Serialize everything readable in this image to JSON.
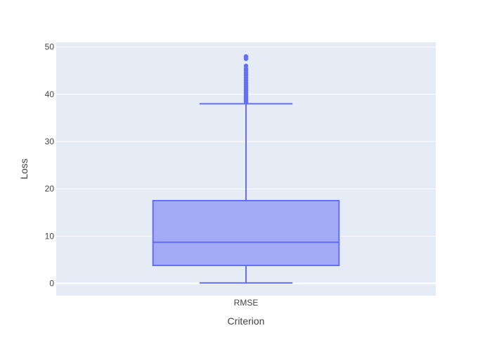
{
  "chart_data": {
    "type": "box",
    "xlabel": "Criterion",
    "ylabel": "Loss",
    "ylim": [
      -2.6,
      51
    ],
    "y_ticks": [
      0,
      10,
      20,
      30,
      40,
      50
    ],
    "grid": true,
    "categories": [
      "RMSE"
    ],
    "series": [
      {
        "category": "RMSE",
        "min": 0.1,
        "q1": 3.8,
        "median": 8.7,
        "q3": 17.5,
        "upper_fence": 38.0,
        "outliers": [
          38.3,
          38.6,
          38.9,
          39.2,
          39.6,
          40.0,
          40.4,
          40.8,
          41.2,
          41.6,
          42.0,
          42.5,
          43.0,
          43.5,
          44.0,
          44.5,
          45.0,
          45.4,
          46.0,
          47.5,
          47.8,
          48.0
        ]
      }
    ],
    "colors": {
      "box_line": "#636efa",
      "box_fill": "#a3abf7",
      "plot_bg": "#e5ecf6",
      "grid": "#ffffff",
      "text": "#444444"
    }
  }
}
